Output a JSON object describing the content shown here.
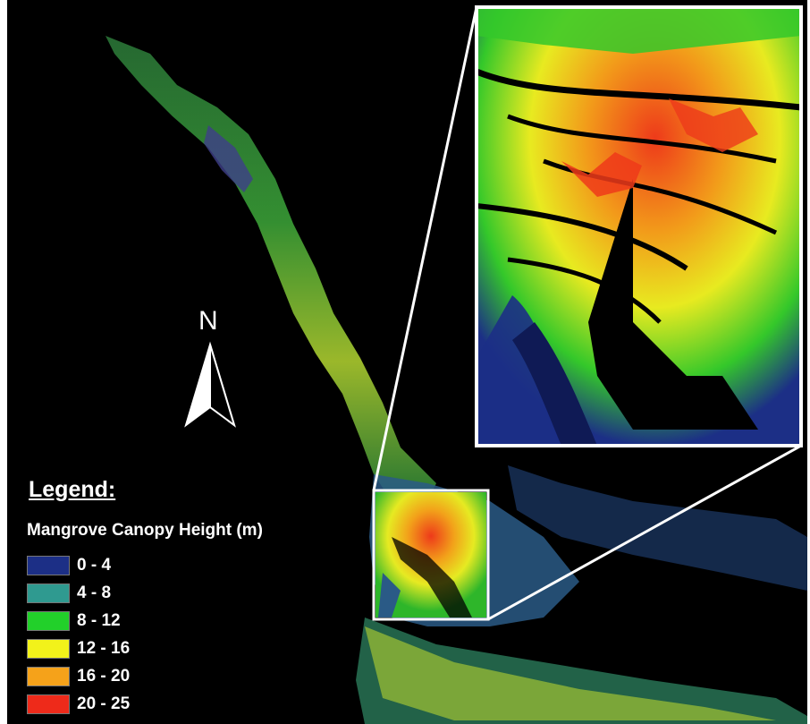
{
  "map": {
    "north_label": "N",
    "legend": {
      "title": "Legend:",
      "subtitle": "Mangrove Canopy Height (m)",
      "items": [
        {
          "label": "0 - 4",
          "color": "#1c2f86"
        },
        {
          "label": "4 - 8",
          "color": "#2f9a90"
        },
        {
          "label": "8 - 12",
          "color": "#22d02a"
        },
        {
          "label": "12 - 16",
          "color": "#f2f21a"
        },
        {
          "label": "16 - 20",
          "color": "#f5a21a"
        },
        {
          "label": "20 - 25",
          "color": "#ee2a1a"
        }
      ]
    }
  }
}
